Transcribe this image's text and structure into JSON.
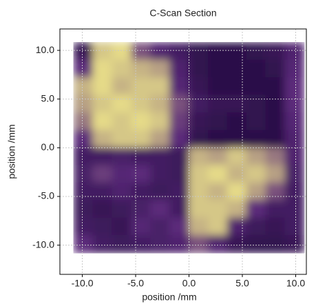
{
  "chart_data": {
    "type": "heatmap",
    "title": "C-Scan Section",
    "xlabel": "position /mm",
    "ylabel": "position /mm",
    "x": [
      -9.9,
      -8.1,
      -6.3,
      -4.5,
      -2.7,
      -0.9,
      0.9,
      2.7,
      4.5,
      6.3,
      8.1,
      9.9
    ],
    "y": [
      9.9,
      8.1,
      6.3,
      4.5,
      2.7,
      0.9,
      -0.9,
      -2.7,
      -4.5,
      -6.3,
      -8.1,
      -9.9
    ],
    "z": [
      [
        0.2,
        0.9,
        0.95,
        0.6,
        0.4,
        0.3,
        0.15,
        0.1,
        0.1,
        0.15,
        0.2,
        0.4
      ],
      [
        0.5,
        0.95,
        0.9,
        0.85,
        0.8,
        0.4,
        0.15,
        0.1,
        0.1,
        0.1,
        0.15,
        0.45
      ],
      [
        0.85,
        0.95,
        0.85,
        0.9,
        0.9,
        0.45,
        0.2,
        0.1,
        0.1,
        0.1,
        0.1,
        0.5
      ],
      [
        0.8,
        0.9,
        0.95,
        0.9,
        0.85,
        0.6,
        0.3,
        0.2,
        0.2,
        0.15,
        0.1,
        0.5
      ],
      [
        0.7,
        0.95,
        0.9,
        0.95,
        0.9,
        0.55,
        0.2,
        0.15,
        0.1,
        0.15,
        0.1,
        0.45
      ],
      [
        0.5,
        0.85,
        0.9,
        0.9,
        0.8,
        0.5,
        0.15,
        0.1,
        0.1,
        0.1,
        0.1,
        0.4
      ],
      [
        0.3,
        0.3,
        0.35,
        0.3,
        0.3,
        0.25,
        0.85,
        0.8,
        0.9,
        0.8,
        0.7,
        0.4
      ],
      [
        0.35,
        0.55,
        0.45,
        0.5,
        0.3,
        0.25,
        0.9,
        0.95,
        0.85,
        0.9,
        0.8,
        0.35
      ],
      [
        0.3,
        0.3,
        0.4,
        0.3,
        0.25,
        0.3,
        0.9,
        0.85,
        0.95,
        0.8,
        0.6,
        0.3
      ],
      [
        0.25,
        0.2,
        0.25,
        0.35,
        0.5,
        0.3,
        0.9,
        0.9,
        0.85,
        0.5,
        0.3,
        0.3
      ],
      [
        0.3,
        0.25,
        0.2,
        0.45,
        0.35,
        0.5,
        0.85,
        0.9,
        0.4,
        0.25,
        0.2,
        0.3
      ],
      [
        0.5,
        0.3,
        0.25,
        0.3,
        0.35,
        0.4,
        0.6,
        0.4,
        0.2,
        0.15,
        0.15,
        0.2
      ]
    ],
    "colormap": [
      "#1f0a3d",
      "#5b2a7a",
      "#f4ee8a"
    ],
    "xlim": [
      -12.1,
      11.0
    ],
    "ylim": [
      -13.0,
      12.2
    ],
    "xticks": [
      {
        "value": -10,
        "label": "-10.0"
      },
      {
        "value": -5,
        "label": "-5.0"
      },
      {
        "value": 0,
        "label": "0.0"
      },
      {
        "value": 5,
        "label": "5.0"
      },
      {
        "value": 10,
        "label": "10.0"
      }
    ],
    "yticks": [
      {
        "value": -10,
        "label": "-10.0"
      },
      {
        "value": -5,
        "label": "-5.0"
      },
      {
        "value": 0,
        "label": "0.0"
      },
      {
        "value": 5,
        "label": "5.0"
      },
      {
        "value": 10,
        "label": "10.0"
      }
    ],
    "grid": true
  }
}
